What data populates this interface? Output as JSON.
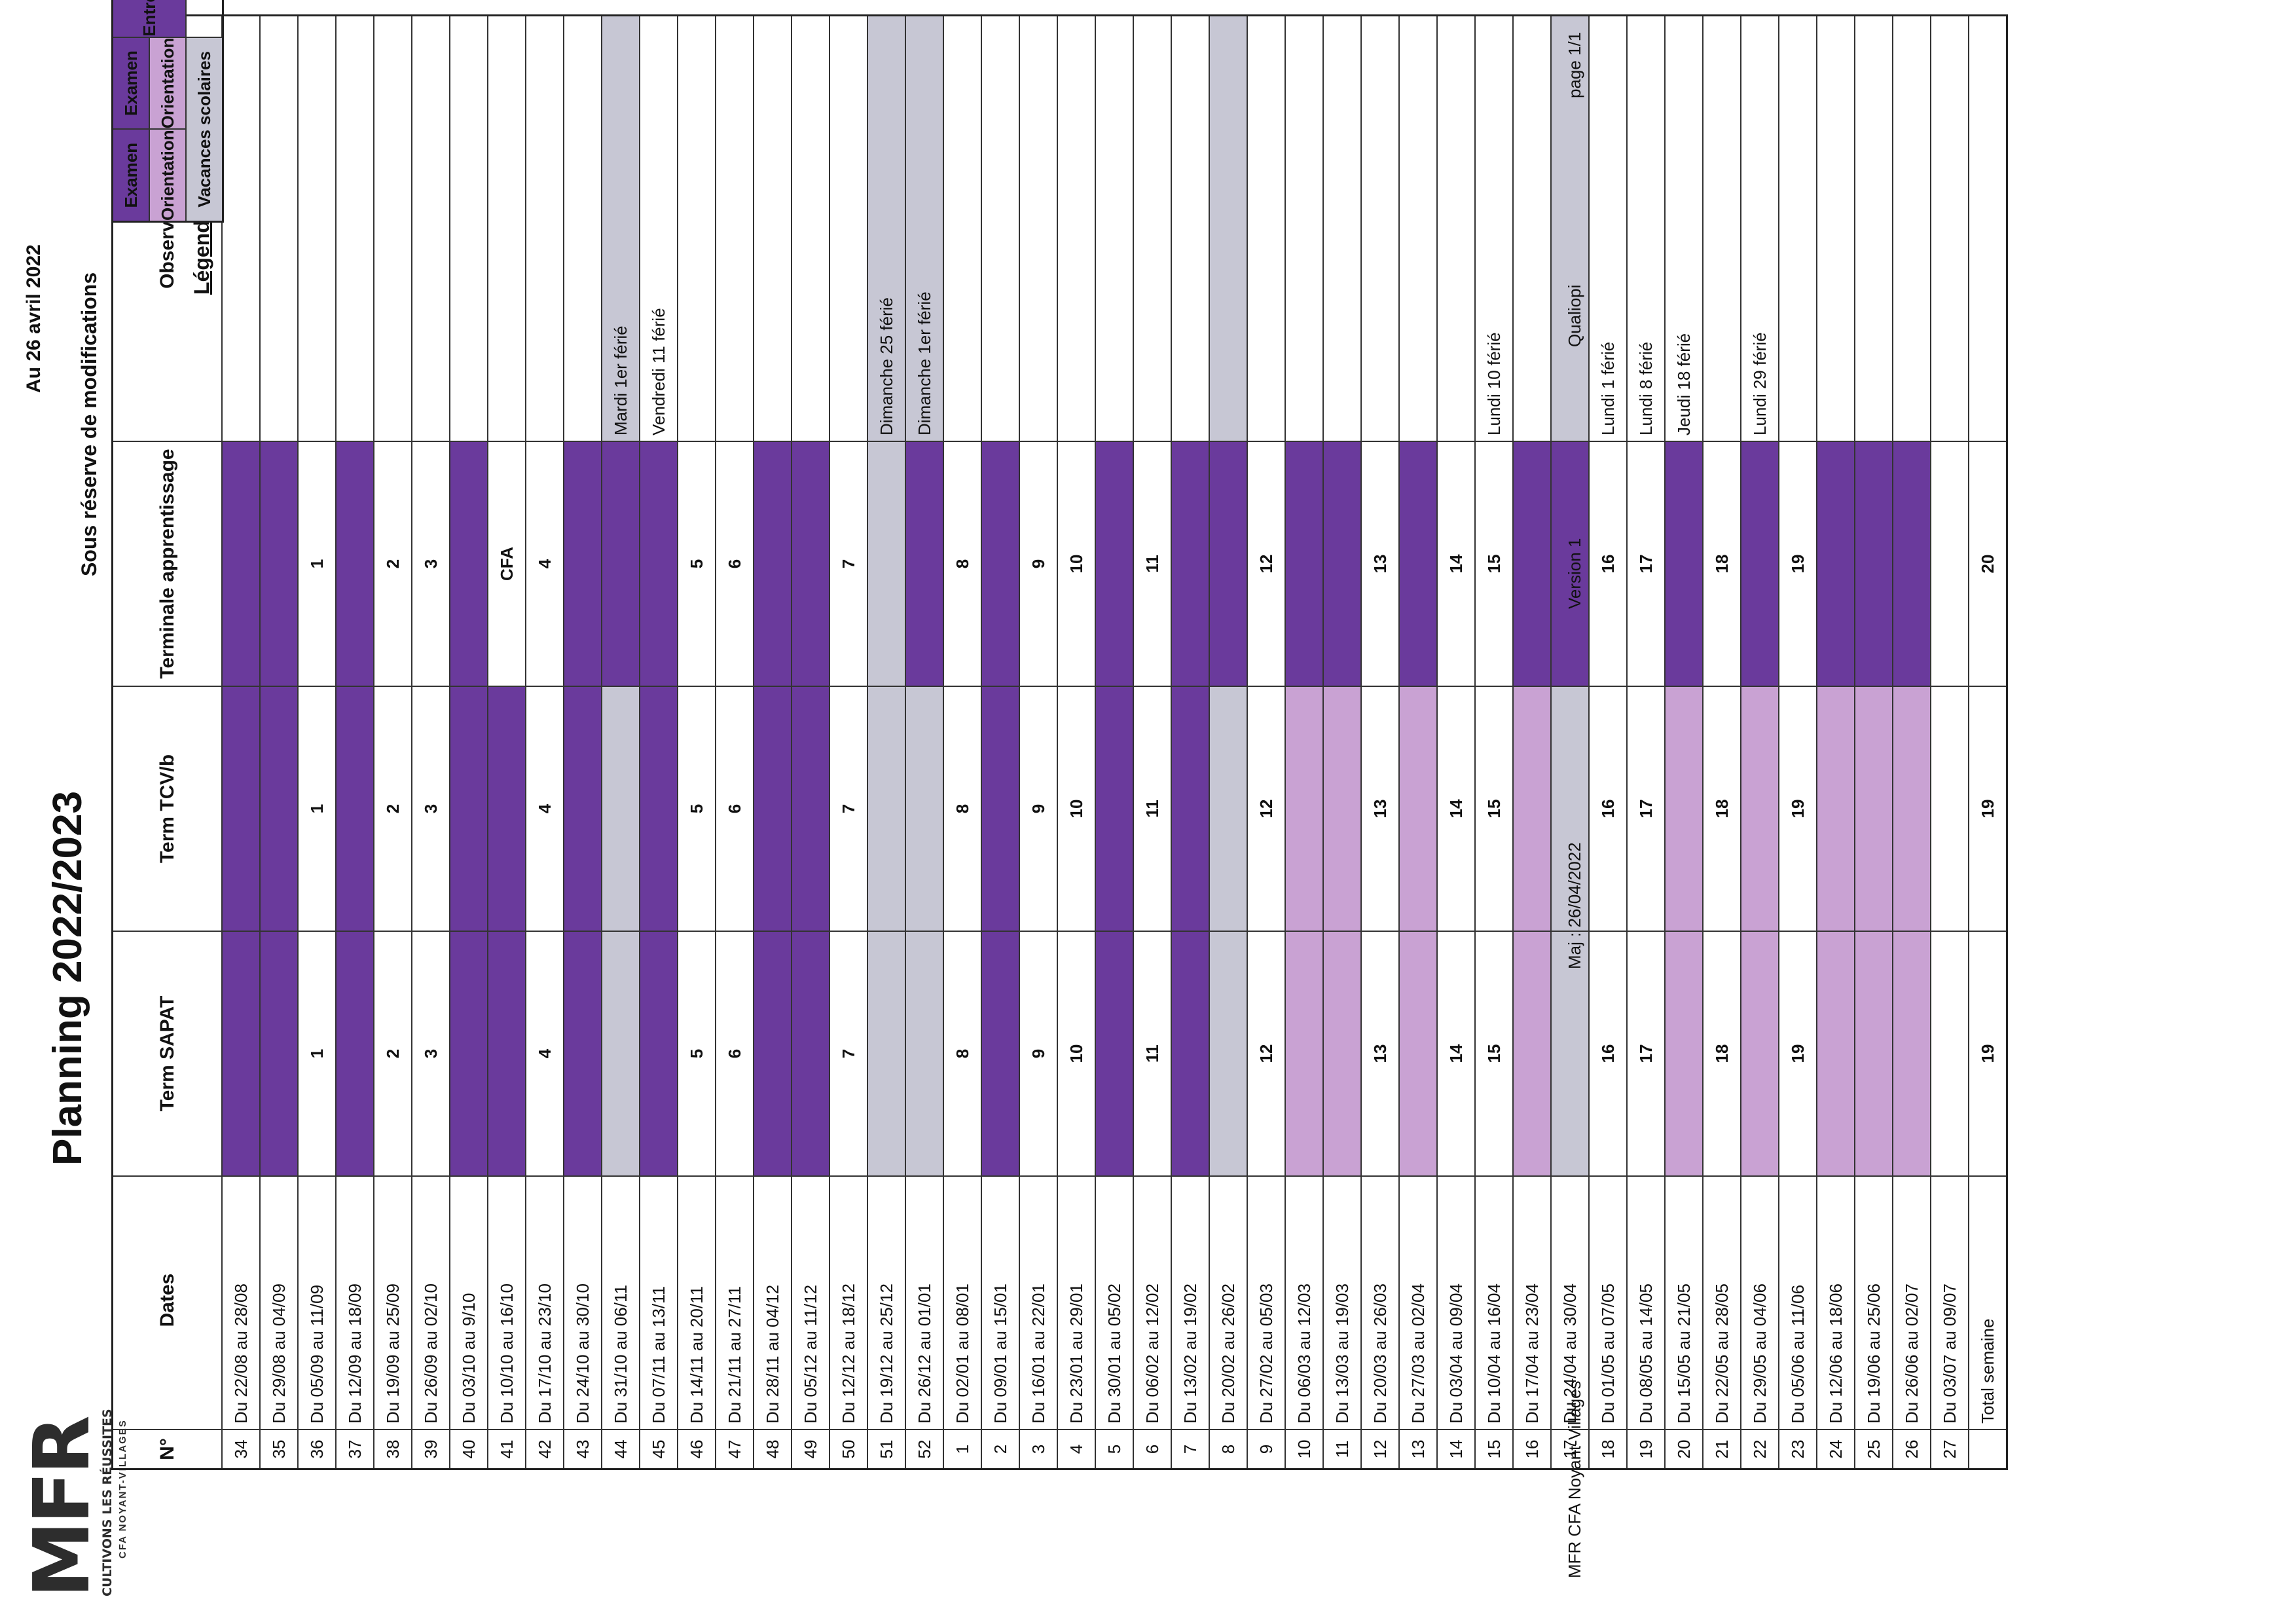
{
  "header": {
    "logo_text": "MFR",
    "logo_tagline": "CULTIVONS LES RÉUSSITES",
    "logo_sub": "CFA NOYANT-VILLAGES",
    "title": "Planning 2022/2023",
    "date": "Au 26 avril 2022",
    "subtitle": "Sous réserve de modifications"
  },
  "columns": {
    "num": "N°",
    "dates": "Dates",
    "sapat": "Term SAPAT",
    "tcv": "Term TCV/b",
    "appr": "Terminale apprentissage",
    "obs": "Observations"
  },
  "colors": {
    "dark": "#6a3a9c",
    "light": "#c9a2d3",
    "grey": "#c7c7d4",
    "white": "#ffffff"
  },
  "rows": [
    {
      "n": "34",
      "d": "Du 22/08 au 28/08",
      "a": "",
      "b": "",
      "c": "",
      "o": "",
      "sa": "dark",
      "sb": "dark",
      "sc": "dark",
      "so": "white"
    },
    {
      "n": "35",
      "d": "Du 29/08 au 04/09",
      "a": "",
      "b": "",
      "c": "",
      "o": "",
      "sa": "dark",
      "sb": "dark",
      "sc": "dark",
      "so": "white"
    },
    {
      "n": "36",
      "d": "Du 05/09 au 11/09",
      "a": "1",
      "b": "1",
      "c": "1",
      "o": "",
      "sa": "white",
      "sb": "white",
      "sc": "white",
      "so": "white"
    },
    {
      "n": "37",
      "d": "Du 12/09 au 18/09",
      "a": "",
      "b": "",
      "c": "",
      "o": "",
      "sa": "dark",
      "sb": "dark",
      "sc": "dark",
      "so": "white"
    },
    {
      "n": "38",
      "d": "Du 19/09 au 25/09",
      "a": "2",
      "b": "2",
      "c": "2",
      "o": "",
      "sa": "white",
      "sb": "white",
      "sc": "white",
      "so": "white"
    },
    {
      "n": "39",
      "d": "Du 26/09 au 02/10",
      "a": "3",
      "b": "3",
      "c": "3",
      "o": "",
      "sa": "white",
      "sb": "white",
      "sc": "white",
      "so": "white"
    },
    {
      "n": "40",
      "d": "Du 03/10 au 9/10",
      "a": "",
      "b": "",
      "c": "",
      "o": "",
      "sa": "dark",
      "sb": "dark",
      "sc": "dark",
      "so": "white"
    },
    {
      "n": "41",
      "d": "Du 10/10 au 16/10",
      "a": "",
      "b": "",
      "c": "CFA",
      "o": "",
      "sa": "dark",
      "sb": "dark",
      "sc": "white",
      "so": "white"
    },
    {
      "n": "42",
      "d": "Du 17/10 au 23/10",
      "a": "4",
      "b": "4",
      "c": "4",
      "o": "",
      "sa": "white",
      "sb": "white",
      "sc": "white",
      "so": "white"
    },
    {
      "n": "43",
      "d": "Du 24/10 au 30/10",
      "a": "",
      "b": "",
      "c": "",
      "o": "",
      "sa": "dark",
      "sb": "dark",
      "sc": "dark",
      "so": "white"
    },
    {
      "n": "44",
      "d": "Du 31/10 au 06/11",
      "a": "",
      "b": "",
      "c": "",
      "o": "Mardi 1er férié",
      "sa": "grey",
      "sb": "grey",
      "sc": "dark",
      "so": "grey"
    },
    {
      "n": "45",
      "d": "Du 07/11 au 13/11",
      "a": "",
      "b": "",
      "c": "",
      "o": "Vendredi 11 férié",
      "sa": "dark",
      "sb": "dark",
      "sc": "dark",
      "so": "white"
    },
    {
      "n": "46",
      "d": "Du 14/11 au 20/11",
      "a": "5",
      "b": "5",
      "c": "5",
      "o": "",
      "sa": "white",
      "sb": "white",
      "sc": "white",
      "so": "white"
    },
    {
      "n": "47",
      "d": "Du 21/11 au 27/11",
      "a": "6",
      "b": "6",
      "c": "6",
      "o": "",
      "sa": "white",
      "sb": "white",
      "sc": "white",
      "so": "white"
    },
    {
      "n": "48",
      "d": "Du 28/11 au 04/12",
      "a": "",
      "b": "",
      "c": "",
      "o": "",
      "sa": "dark",
      "sb": "dark",
      "sc": "dark",
      "so": "white"
    },
    {
      "n": "49",
      "d": "Du 05/12 au 11/12",
      "a": "",
      "b": "",
      "c": "",
      "o": "",
      "sa": "dark",
      "sb": "dark",
      "sc": "dark",
      "so": "white"
    },
    {
      "n": "50",
      "d": "Du 12/12 au 18/12",
      "a": "7",
      "b": "7",
      "c": "7",
      "o": "",
      "sa": "white",
      "sb": "white",
      "sc": "white",
      "so": "white"
    },
    {
      "n": "51",
      "d": "Du 19/12 au 25/12",
      "a": "",
      "b": "",
      "c": "",
      "o": "Dimanche 25 férié",
      "sa": "grey",
      "sb": "grey",
      "sc": "grey",
      "so": "grey"
    },
    {
      "n": "52",
      "d": "Du 26/12 au 01/01",
      "a": "",
      "b": "",
      "c": "",
      "o": "Dimanche 1er férié",
      "sa": "grey",
      "sb": "grey",
      "sc": "dark",
      "so": "grey"
    },
    {
      "n": "1",
      "d": "Du 02/01 au 08/01",
      "a": "8",
      "b": "8",
      "c": "8",
      "o": "",
      "sa": "white",
      "sb": "white",
      "sc": "white",
      "so": "white"
    },
    {
      "n": "2",
      "d": "Du 09/01 au 15/01",
      "a": "",
      "b": "",
      "c": "",
      "o": "",
      "sa": "dark",
      "sb": "dark",
      "sc": "dark",
      "so": "white"
    },
    {
      "n": "3",
      "d": "Du 16/01 au 22/01",
      "a": "9",
      "b": "9",
      "c": "9",
      "o": "",
      "sa": "white",
      "sb": "white",
      "sc": "white",
      "so": "white"
    },
    {
      "n": "4",
      "d": "Du 23/01 au 29/01",
      "a": "10",
      "b": "10",
      "c": "10",
      "o": "",
      "sa": "white",
      "sb": "white",
      "sc": "white",
      "so": "white"
    },
    {
      "n": "5",
      "d": "Du 30/01 au 05/02",
      "a": "",
      "b": "",
      "c": "",
      "o": "",
      "sa": "dark",
      "sb": "dark",
      "sc": "dark",
      "so": "white"
    },
    {
      "n": "6",
      "d": "Du 06/02 au 12/02",
      "a": "11",
      "b": "11",
      "c": "11",
      "o": "",
      "sa": "white",
      "sb": "white",
      "sc": "white",
      "so": "white"
    },
    {
      "n": "7",
      "d": "Du 13/02 au 19/02",
      "a": "",
      "b": "",
      "c": "",
      "o": "",
      "sa": "dark",
      "sb": "dark",
      "sc": "dark",
      "so": "white"
    },
    {
      "n": "8",
      "d": "Du 20/02 au 26/02",
      "a": "",
      "b": "",
      "c": "",
      "o": "",
      "sa": "grey",
      "sb": "grey",
      "sc": "dark",
      "so": "grey"
    },
    {
      "n": "9",
      "d": "Du 27/02 au 05/03",
      "a": "12",
      "b": "12",
      "c": "12",
      "o": "",
      "sa": "white",
      "sb": "white",
      "sc": "white",
      "so": "white"
    },
    {
      "n": "10",
      "d": "Du 06/03 au 12/03",
      "a": "",
      "b": "",
      "c": "",
      "o": "",
      "sa": "light",
      "sb": "light",
      "sc": "dark",
      "so": "white"
    },
    {
      "n": "11",
      "d": "Du 13/03 au 19/03",
      "a": "",
      "b": "",
      "c": "",
      "o": "",
      "sa": "light",
      "sb": "light",
      "sc": "dark",
      "so": "white"
    },
    {
      "n": "12",
      "d": "Du 20/03 au 26/03",
      "a": "13",
      "b": "13",
      "c": "13",
      "o": "",
      "sa": "white",
      "sb": "white",
      "sc": "white",
      "so": "white"
    },
    {
      "n": "13",
      "d": "Du 27/03 au 02/04",
      "a": "",
      "b": "",
      "c": "",
      "o": "",
      "sa": "light",
      "sb": "light",
      "sc": "dark",
      "so": "white"
    },
    {
      "n": "14",
      "d": "Du 03/04 au 09/04",
      "a": "14",
      "b": "14",
      "c": "14",
      "o": "",
      "sa": "white",
      "sb": "white",
      "sc": "white",
      "so": "white"
    },
    {
      "n": "15",
      "d": "Du 10/04 au 16/04",
      "a": "15",
      "b": "15",
      "c": "15",
      "o": "Lundi 10 férié",
      "sa": "white",
      "sb": "white",
      "sc": "white",
      "so": "white"
    },
    {
      "n": "16",
      "d": "Du 17/04 au 23/04",
      "a": "",
      "b": "",
      "c": "",
      "o": "",
      "sa": "light",
      "sb": "light",
      "sc": "dark",
      "so": "white"
    },
    {
      "n": "17",
      "d": "Du 24/04 au 30/04",
      "a": "",
      "b": "",
      "c": "",
      "o": "",
      "sa": "grey",
      "sb": "grey",
      "sc": "dark",
      "so": "grey"
    },
    {
      "n": "18",
      "d": "Du 01/05 au 07/05",
      "a": "16",
      "b": "16",
      "c": "16",
      "o": "Lundi 1 férié",
      "sa": "white",
      "sb": "white",
      "sc": "white",
      "so": "white"
    },
    {
      "n": "19",
      "d": "Du 08/05 au 14/05",
      "a": "17",
      "b": "17",
      "c": "17",
      "o": "Lundi 8 férié",
      "sa": "white",
      "sb": "white",
      "sc": "white",
      "so": "white"
    },
    {
      "n": "20",
      "d": "Du 15/05 au 21/05",
      "a": "",
      "b": "",
      "c": "",
      "o": "Jeudi 18 férié",
      "sa": "light",
      "sb": "light",
      "sc": "dark",
      "so": "white"
    },
    {
      "n": "21",
      "d": "Du 22/05 au 28/05",
      "a": "18",
      "b": "18",
      "c": "18",
      "o": "",
      "sa": "white",
      "sb": "white",
      "sc": "white",
      "so": "white"
    },
    {
      "n": "22",
      "d": "Du 29/05 au 04/06",
      "a": "",
      "b": "",
      "c": "",
      "o": "Lundi 29 férié",
      "sa": "light",
      "sb": "light",
      "sc": "dark",
      "so": "white"
    },
    {
      "n": "23",
      "d": "Du 05/06 au 11/06",
      "a": "19",
      "b": "19",
      "c": "19",
      "o": "",
      "sa": "white",
      "sb": "white",
      "sc": "white",
      "so": "white"
    },
    {
      "n": "24",
      "d": "Du 12/06 au 18/06",
      "a": "",
      "b": "",
      "c": "",
      "o": "",
      "sa": "light",
      "sb": "light",
      "sc": "dark",
      "so": "white"
    },
    {
      "n": "25",
      "d": "Du 19/06 au 25/06",
      "a": "",
      "b": "",
      "c": "",
      "o": "",
      "sa": "light",
      "sb": "light",
      "sc": "dark",
      "so": "white"
    },
    {
      "n": "26",
      "d": "Du 26/06 au 02/07",
      "a": "",
      "b": "",
      "c": "",
      "o": "",
      "sa": "light",
      "sb": "light",
      "sc": "dark",
      "so": "white"
    },
    {
      "n": "27",
      "d": "Du 03/07 au 09/07",
      "a": "",
      "b": "",
      "c": "",
      "o": "",
      "sa": "white",
      "sb": "white",
      "sc": "white",
      "so": "white"
    }
  ],
  "total": {
    "label": "Total semaine",
    "a": "19",
    "b": "19",
    "c": "20"
  },
  "legend": {
    "title": "Légendes",
    "items": [
      {
        "label": "Examen",
        "shade": "dark"
      },
      {
        "label": "Orientation",
        "shade": "light"
      },
      {
        "label": "Vacances scolaires",
        "shade": "grey"
      },
      {
        "label": "Entreprise",
        "shade": "dark"
      }
    ]
  },
  "footer": {
    "org": "MFR CFA Noyant-Villages",
    "updated": "Maj : 26/04/2022",
    "version": "Version 1",
    "cert": "Qualiopi",
    "page": "page 1/1"
  }
}
